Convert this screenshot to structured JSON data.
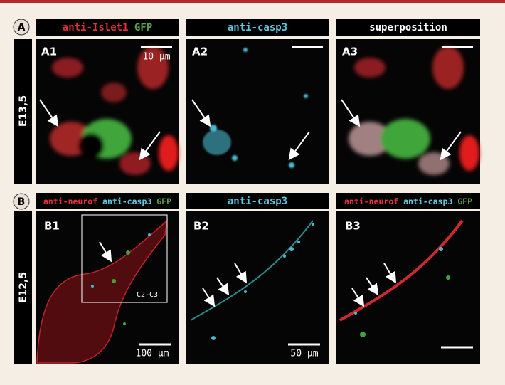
{
  "row_a": {
    "label": "A",
    "side_label": "E13,5",
    "header_1": [
      "anti-Islet1",
      "GFP"
    ],
    "header_2": "anti-casp3",
    "header_3": "superposition",
    "panels": [
      "A1",
      "A2",
      "A3"
    ],
    "scale_bar": "10 µm"
  },
  "row_b": {
    "label": "B",
    "side_label": "E12,5",
    "header_1": [
      "anti-neurof",
      "anti-casp3",
      "GFP"
    ],
    "header_2": "anti-casp3",
    "header_3": [
      "anti-neurof",
      "anti-casp3",
      "GFP"
    ],
    "panels": [
      "B1",
      "B2",
      "B3"
    ],
    "inset_label": "C2-C3",
    "scale_bars": [
      "100 µm",
      "50 µm"
    ]
  }
}
